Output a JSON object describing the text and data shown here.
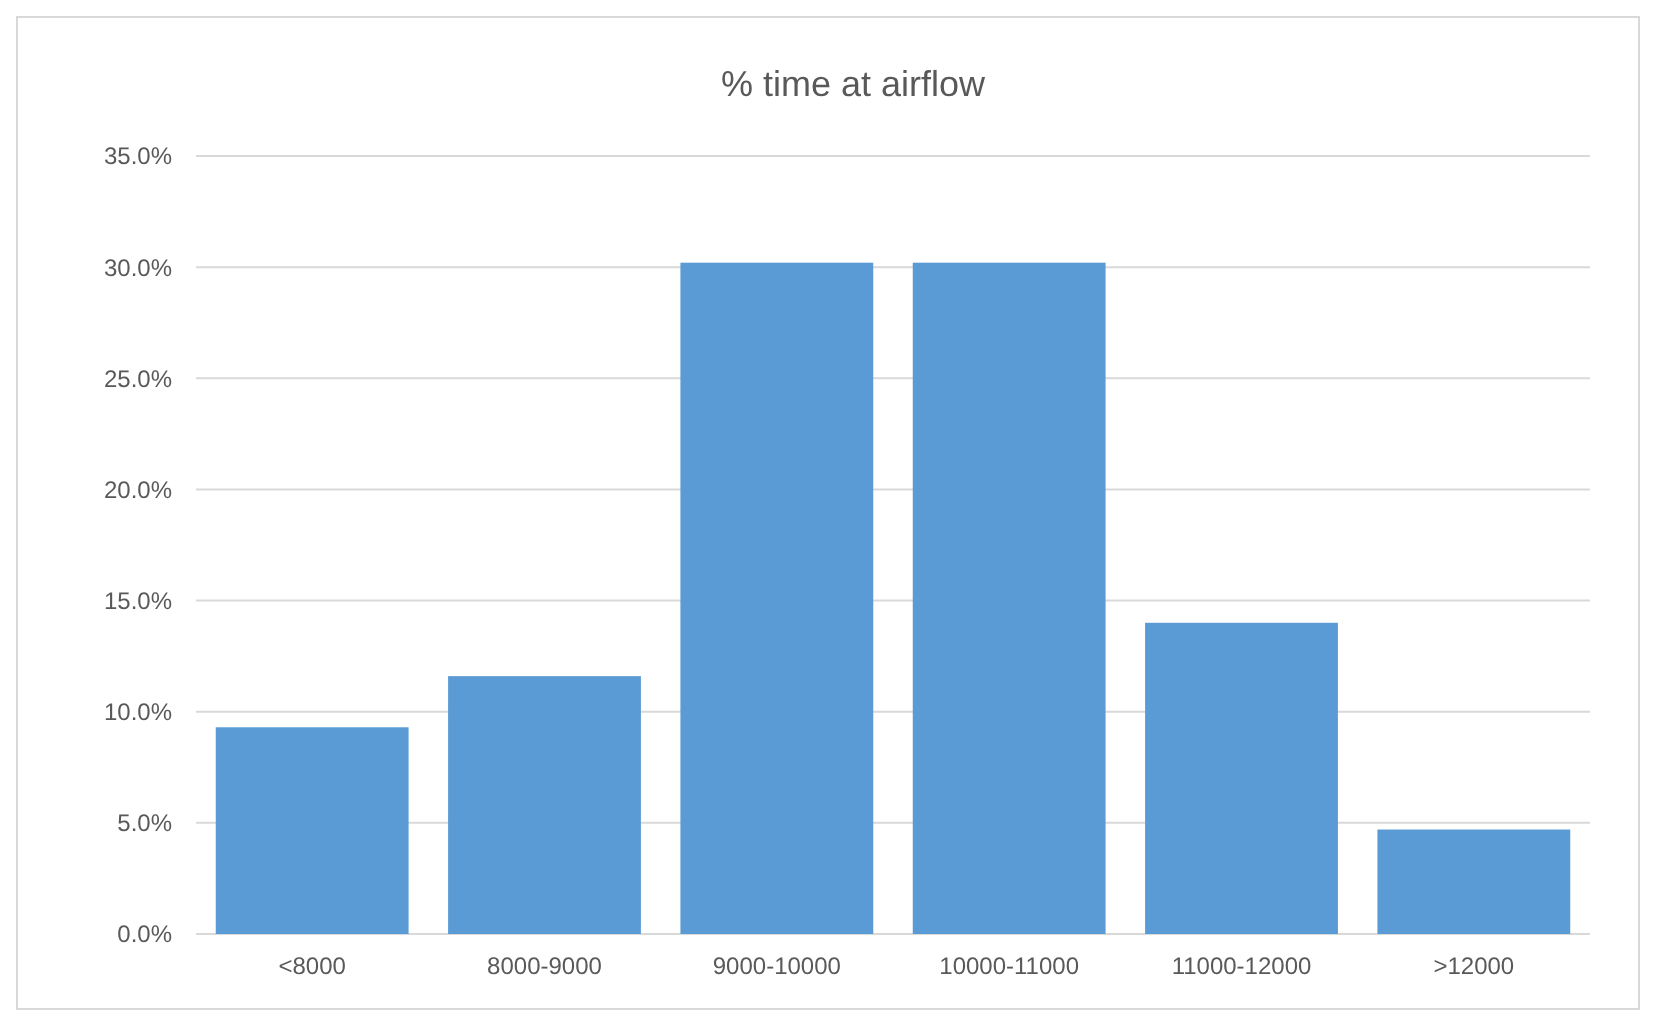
{
  "chart_data": {
    "type": "bar",
    "title": "% time at airflow",
    "categories": [
      "<8000",
      "8000-9000",
      "9000-10000",
      "10000-11000",
      "11000-12000",
      ">12000"
    ],
    "values": [
      9.3,
      11.6,
      30.2,
      30.2,
      14.0,
      4.7
    ],
    "color": "#5b9bd5",
    "ylim": [
      0,
      35
    ],
    "yticks": [
      {
        "value": 0,
        "label": "0.0%"
      },
      {
        "value": 5,
        "label": "5.0%"
      },
      {
        "value": 10,
        "label": "10.0%"
      },
      {
        "value": 15,
        "label": "15.0%"
      },
      {
        "value": 20,
        "label": "20.0%"
      },
      {
        "value": 25,
        "label": "25.0%"
      },
      {
        "value": 30,
        "label": "30.0%"
      },
      {
        "value": 35,
        "label": "35.0%"
      }
    ],
    "grid": true
  }
}
